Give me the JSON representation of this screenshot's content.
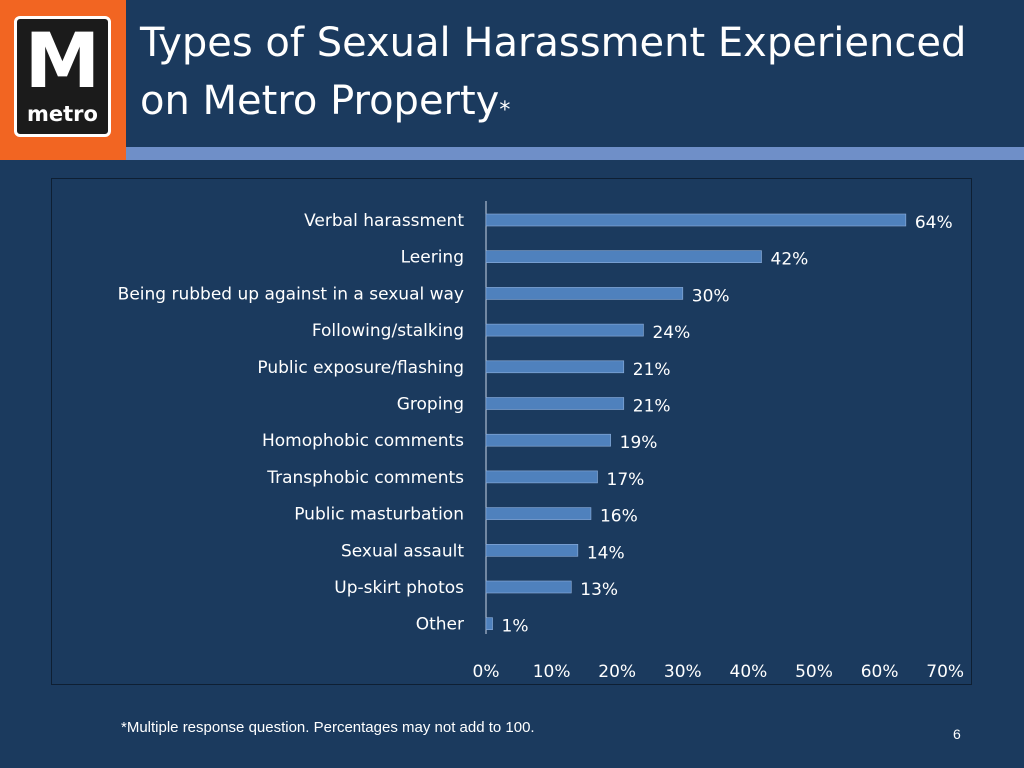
{
  "logo": {
    "letter": "M",
    "word": "metro"
  },
  "title": {
    "line1": "Types of Sexual Harassment Experienced",
    "line2": "on Metro Property",
    "marker": "*"
  },
  "chart_data": {
    "type": "bar",
    "orientation": "horizontal",
    "categories": [
      "Verbal harassment",
      "Leering",
      "Being rubbed up against in a sexual way",
      "Following/stalking",
      "Public exposure/flashing",
      "Groping",
      "Homophobic comments",
      "Transphobic comments",
      "Public masturbation",
      "Sexual assault",
      "Up-skirt photos",
      "Other"
    ],
    "values": [
      64,
      42,
      30,
      24,
      21,
      21,
      19,
      17,
      16,
      14,
      13,
      1
    ],
    "data_labels": [
      "64%",
      "42%",
      "30%",
      "24%",
      "21%",
      "21%",
      "19%",
      "17%",
      "16%",
      "14%",
      "13%",
      "1%"
    ],
    "xlim": [
      0,
      70
    ],
    "x_ticks": [
      "0%",
      "10%",
      "20%",
      "30%",
      "40%",
      "50%",
      "60%",
      "70%"
    ],
    "bar_color": "#4f81bd",
    "grid": false,
    "legend": "none"
  },
  "footnote": "*Multiple response question.  Percentages may not add to 100.",
  "page_number": "6"
}
